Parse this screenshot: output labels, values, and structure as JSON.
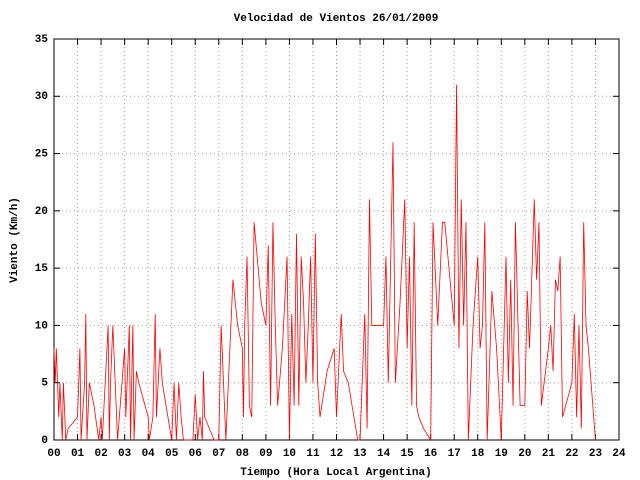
{
  "chart_data": {
    "type": "line",
    "title": "Velocidad de Vientos 26/01/2009",
    "xlabel": "Tiempo (Hora Local Argentina)",
    "ylabel": "Viento (Km/h)",
    "color": "#ff0000",
    "grid": true,
    "xlim": [
      0,
      24
    ],
    "ylim": [
      0,
      35
    ],
    "xticks": [
      {
        "value": 0,
        "label": "00"
      },
      {
        "value": 1,
        "label": "01"
      },
      {
        "value": 2,
        "label": "02"
      },
      {
        "value": 3,
        "label": "03"
      },
      {
        "value": 4,
        "label": "04"
      },
      {
        "value": 5,
        "label": "05"
      },
      {
        "value": 6,
        "label": "06"
      },
      {
        "value": 7,
        "label": "07"
      },
      {
        "value": 8,
        "label": "08"
      },
      {
        "value": 9,
        "label": "09"
      },
      10,
      11,
      12,
      13,
      14,
      15,
      16,
      17,
      18,
      19,
      20,
      21,
      22,
      23,
      24
    ],
    "yticks": [
      0,
      5,
      10,
      15,
      20,
      25,
      30,
      35
    ],
    "x": [
      0.0,
      0.05,
      0.1,
      0.2,
      0.25,
      0.35,
      0.4,
      0.5,
      0.6,
      1.0,
      1.1,
      1.15,
      1.3,
      1.35,
      1.4,
      1.5,
      1.7,
      1.9,
      2.0,
      2.05,
      2.1,
      2.3,
      2.35,
      2.4,
      2.5,
      2.6,
      2.7,
      3.0,
      3.05,
      3.2,
      3.25,
      3.35,
      3.4,
      3.5,
      3.6,
      4.0,
      4.05,
      4.2,
      4.3,
      4.35,
      4.5,
      4.6,
      5.0,
      5.1,
      5.2,
      5.3,
      5.4,
      5.5,
      5.9,
      6.0,
      6.1,
      6.2,
      6.3,
      6.35,
      6.4,
      6.8,
      7.0,
      7.1,
      7.2,
      7.3,
      7.6,
      7.8,
      8.0,
      8.05,
      8.1,
      8.2,
      8.3,
      8.4,
      8.5,
      8.8,
      9.0,
      9.1,
      9.2,
      9.3,
      9.4,
      9.5,
      9.7,
      9.9,
      10.0,
      10.1,
      10.2,
      10.3,
      10.4,
      10.5,
      10.6,
      10.7,
      10.8,
      10.9,
      11.0,
      11.1,
      11.2,
      11.3,
      11.6,
      11.9,
      12.0,
      12.2,
      12.3,
      12.5,
      12.9,
      13.0,
      13.2,
      13.3,
      13.4,
      13.5,
      13.6,
      14.0,
      14.1,
      14.2,
      14.4,
      14.5,
      14.7,
      14.9,
      15.0,
      15.1,
      15.2,
      15.3,
      15.4,
      15.5,
      15.7,
      16.0,
      16.1,
      16.3,
      16.5,
      16.6,
      17.0,
      17.1,
      17.2,
      17.3,
      17.4,
      17.5,
      17.6,
      17.8,
      18.0,
      18.1,
      18.2,
      18.3,
      18.4,
      18.6,
      18.8,
      19.0,
      19.2,
      19.3,
      19.4,
      19.5,
      19.6,
      19.8,
      20.0,
      20.1,
      20.2,
      20.4,
      20.5,
      20.6,
      20.7,
      21.0,
      21.1,
      21.2,
      21.3,
      21.4,
      21.5,
      21.6,
      22.0,
      22.1,
      22.2,
      22.3,
      22.4,
      22.5,
      22.6,
      22.7,
      23.0
    ],
    "values": [
      8,
      5,
      8,
      2,
      5,
      0,
      5,
      0,
      1,
      2,
      8,
      0,
      5,
      11,
      0,
      5,
      3,
      0,
      2,
      0,
      2,
      10,
      0,
      5,
      10,
      5,
      0,
      8,
      2,
      10,
      0,
      10,
      0,
      6,
      5,
      2,
      0,
      2,
      11,
      2,
      8,
      5,
      0,
      5,
      0,
      5,
      2,
      0,
      0,
      4,
      0,
      2,
      0,
      6,
      2,
      0,
      0,
      10,
      5,
      0,
      14,
      10,
      8,
      2,
      10,
      16,
      3,
      2,
      19,
      12,
      10,
      17,
      3,
      19,
      10,
      3,
      8,
      16,
      0,
      11,
      3,
      18,
      3,
      16,
      12,
      5,
      10,
      16,
      5,
      18,
      5,
      2,
      6,
      8,
      2,
      11,
      6,
      5,
      0,
      0,
      11,
      1,
      21,
      10,
      10,
      10,
      16,
      5,
      26,
      5,
      12,
      21,
      8,
      16,
      3,
      19,
      3,
      2,
      1,
      0,
      19,
      10,
      19,
      19,
      10,
      31,
      8,
      21,
      10,
      19,
      0,
      10,
      16,
      8,
      10,
      19,
      0,
      13,
      8,
      0,
      16,
      5,
      14,
      3,
      19,
      3,
      3,
      13,
      8,
      21,
      14,
      19,
      3,
      8,
      10,
      6,
      14,
      13,
      16,
      2,
      5,
      11,
      2,
      10,
      1,
      19,
      10,
      8,
      0
    ]
  }
}
